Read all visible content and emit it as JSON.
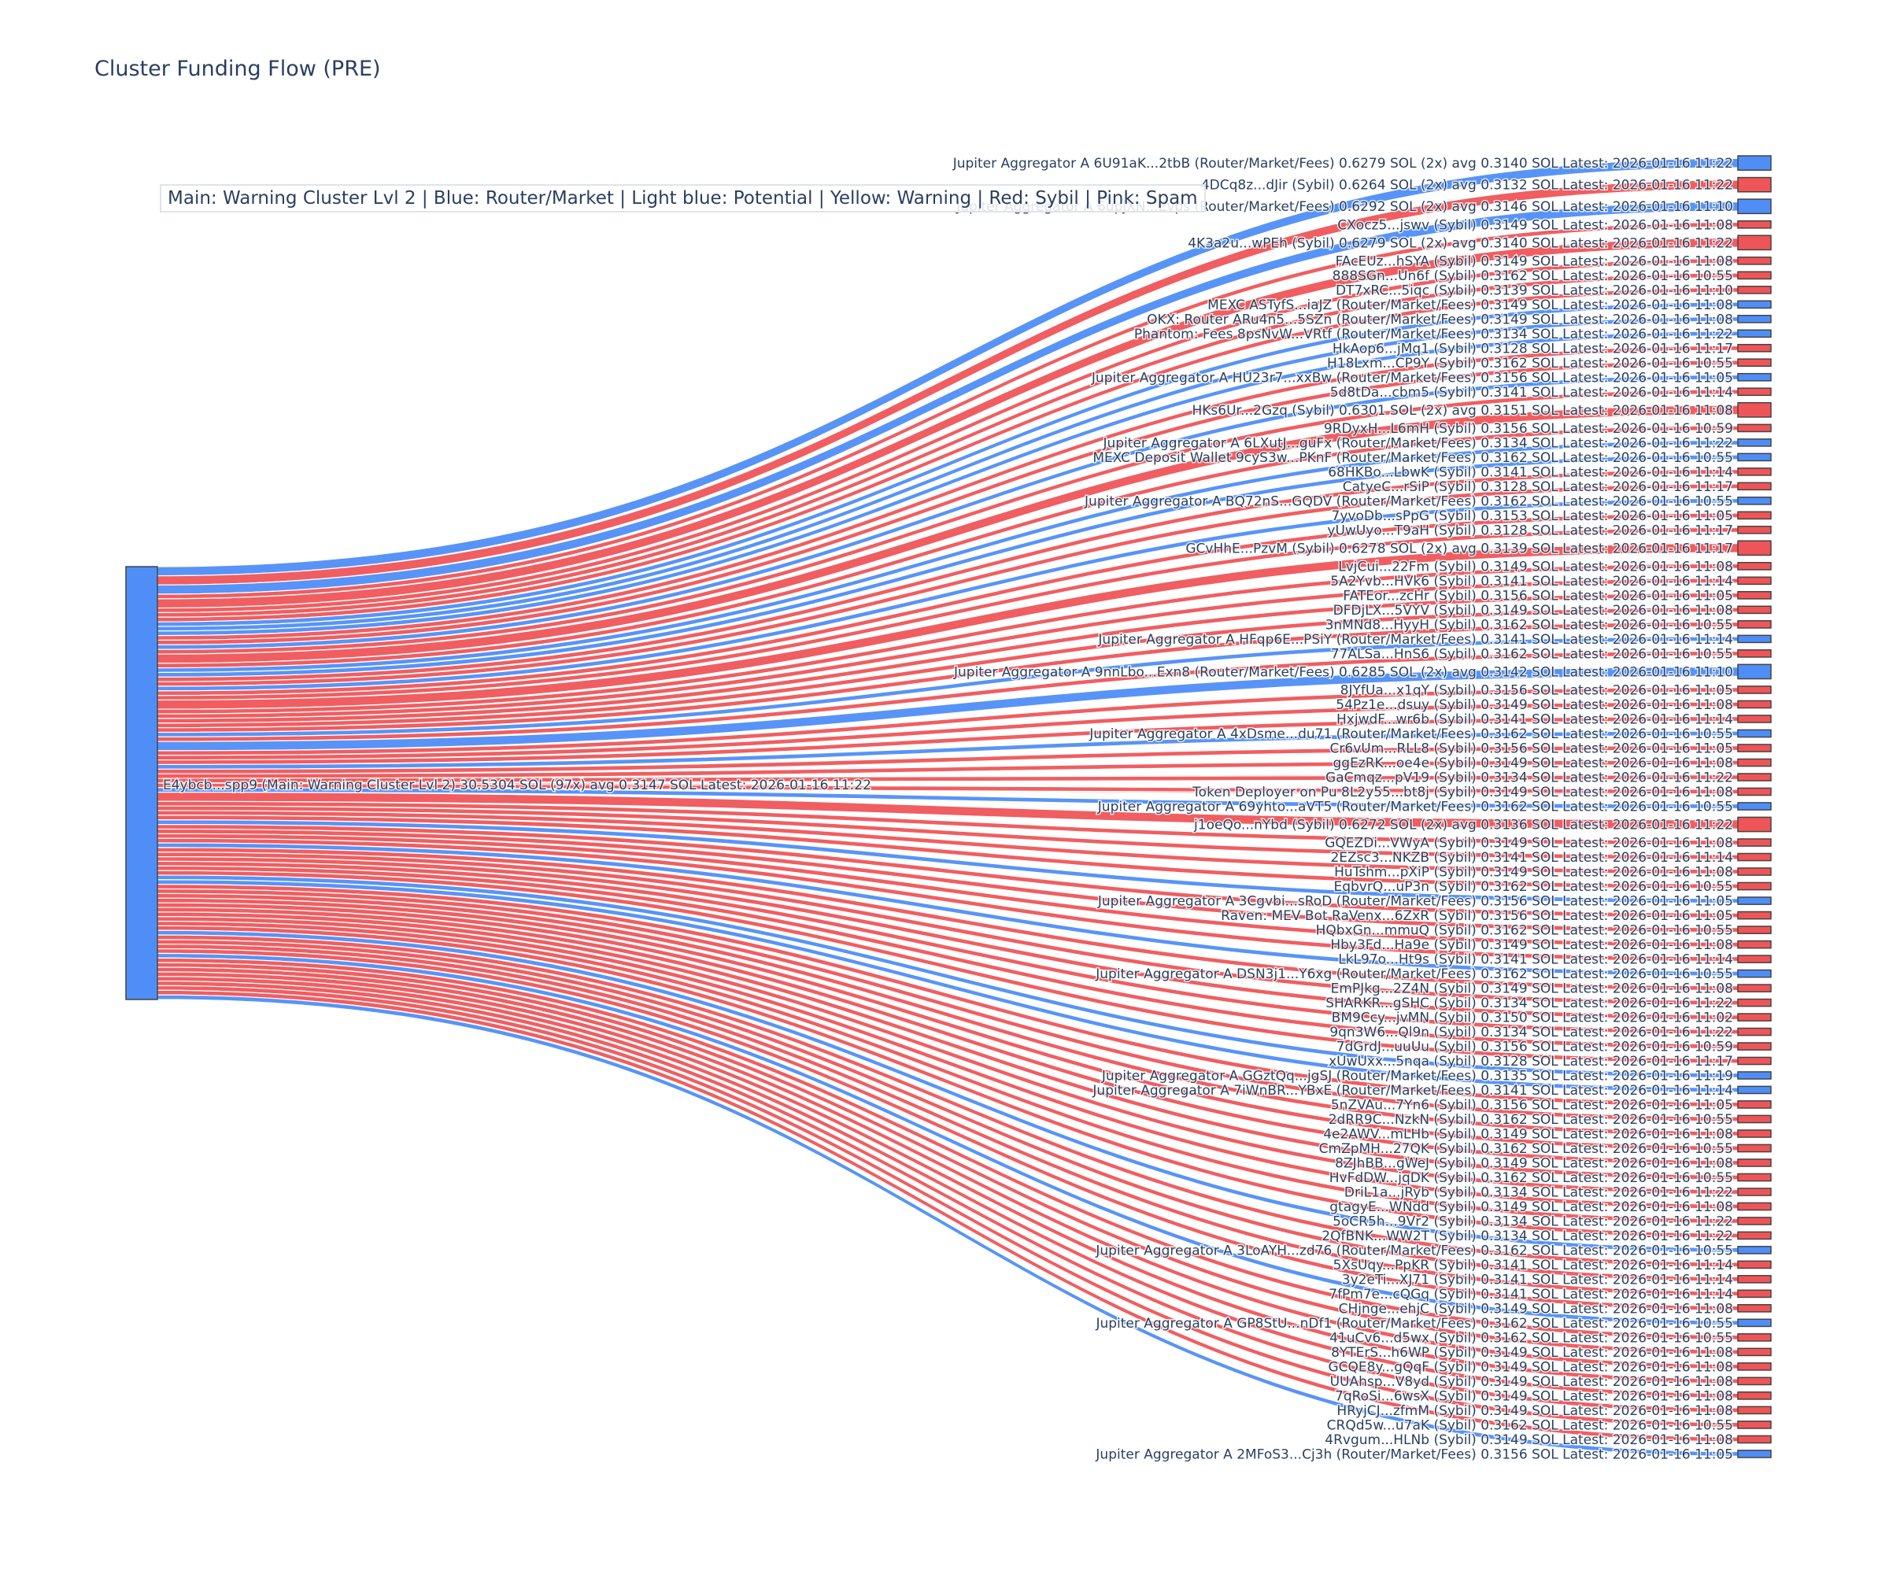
{
  "title": "Cluster Funding Flow (PRE)",
  "legend": "Main: Warning Cluster Lvl 2  |  Blue: Router/Market | Light blue: Potential | Yellow: Warning | Red: Sybil | Pink: Spam",
  "colors": {
    "router": "#4f8ef7",
    "sybil": "#ef5558",
    "main": "#4f8ef7",
    "text": "#2a3f5f"
  },
  "source": {
    "label": "E4ybcb...spp9 (Main: Warning Cluster Lvl 2) 30.5304 SOL (97x) avg 0.3147 SOL Latest: 2026-01-16 11:22",
    "type": "main",
    "value": 30.5304
  },
  "targets": [
    {
      "label": "Jupiter Aggregator A 6U91aK...2tbB (Router/Market/Fees) 0.6279 SOL (2x) avg 0.3140 SOL Latest: 2026-01-16 11:22",
      "type": "router",
      "value": 0.6279
    },
    {
      "label": "4DCq8z...dJir (Sybil) 0.6264 SOL (2x) avg 0.3132 SOL Latest: 2026-01-16 11:22",
      "type": "sybil",
      "value": 0.6264
    },
    {
      "label": "Jupiter Aggregator A 6upjXN...Evps (Router/Market/Fees) 0.6292 SOL (2x) avg 0.3146 SOL Latest: 2026-01-16 11:10",
      "type": "router",
      "value": 0.6292
    },
    {
      "label": "CXocz5...jswv (Sybil) 0.3149 SOL Latest: 2026-01-16 11:08",
      "type": "sybil",
      "value": 0.3149
    },
    {
      "label": "4K3a2u...wPEh (Sybil) 0.6279 SOL (2x) avg 0.3140 SOL Latest: 2026-01-16 11:22",
      "type": "sybil",
      "value": 0.6279
    },
    {
      "label": "FAcEUz...hSYA (Sybil) 0.3149 SOL Latest: 2026-01-16 11:08",
      "type": "sybil",
      "value": 0.3149
    },
    {
      "label": "888SGn...Un6f (Sybil) 0.3162 SOL Latest: 2026-01-16 10:55",
      "type": "sybil",
      "value": 0.3162
    },
    {
      "label": "DT7xRC...5iqc (Sybil) 0.3139 SOL Latest: 2026-01-16 11:10",
      "type": "sybil",
      "value": 0.3139
    },
    {
      "label": "MEXC ASTyfS...iaJZ (Router/Market/Fees) 0.3149 SOL Latest: 2026-01-16 11:08",
      "type": "router",
      "value": 0.3149
    },
    {
      "label": "OKX: Router ARu4n5...5SZn (Router/Market/Fees) 0.3149 SOL Latest: 2026-01-16 11:08",
      "type": "router",
      "value": 0.3149
    },
    {
      "label": "Phantom: Fees 8psNvW...VRtf (Router/Market/Fees) 0.3134 SOL Latest: 2026-01-16 11:22",
      "type": "router",
      "value": 0.3134
    },
    {
      "label": "HkAop6...jMq1 (Sybil) 0.3128 SOL Latest: 2026-01-16 11:17",
      "type": "sybil",
      "value": 0.3128
    },
    {
      "label": "H18Lxm...CP9Y (Sybil) 0.3162 SOL Latest: 2026-01-16 10:55",
      "type": "sybil",
      "value": 0.3162
    },
    {
      "label": "Jupiter Aggregator A HU23r7...xxBw (Router/Market/Fees) 0.3156 SOL Latest: 2026-01-16 11:05",
      "type": "router",
      "value": 0.3156
    },
    {
      "label": "5d8tDa...cbm5 (Sybil) 0.3141 SOL Latest: 2026-01-16 11:14",
      "type": "sybil",
      "value": 0.3141
    },
    {
      "label": "HKs6Ur...2Gzq (Sybil) 0.6301 SOL (2x) avg 0.3151 SOL Latest: 2026-01-16 11:08",
      "type": "sybil",
      "value": 0.6301
    },
    {
      "label": "9RDyxH...L6mH (Sybil) 0.3156 SOL Latest: 2026-01-16 10:59",
      "type": "sybil",
      "value": 0.3156
    },
    {
      "label": "Jupiter Aggregator A 6LXutJ...guFx (Router/Market/Fees) 0.3134 SOL Latest: 2026-01-16 11:22",
      "type": "router",
      "value": 0.3134
    },
    {
      "label": "MEXC Deposit Wallet 9cyS3w...PKnF (Router/Market/Fees) 0.3162 SOL Latest: 2026-01-16 10:55",
      "type": "router",
      "value": 0.3162
    },
    {
      "label": "68HKBo...LbwK (Sybil) 0.3141 SOL Latest: 2026-01-16 11:14",
      "type": "sybil",
      "value": 0.3141
    },
    {
      "label": "CatyeC...rSiP (Sybil) 0.3128 SOL Latest: 2026-01-16 11:17",
      "type": "sybil",
      "value": 0.3128
    },
    {
      "label": "Jupiter Aggregator A BQ72nS...GQDV (Router/Market/Fees) 0.3162 SOL Latest: 2026-01-16 10:55",
      "type": "router",
      "value": 0.3162
    },
    {
      "label": "7yvoDb...sPpG (Sybil) 0.3153 SOL Latest: 2026-01-16 11:05",
      "type": "sybil",
      "value": 0.3153
    },
    {
      "label": "yUwUyo...T9aH (Sybil) 0.3128 SOL Latest: 2026-01-16 11:17",
      "type": "sybil",
      "value": 0.3128
    },
    {
      "label": "GCvHhE...PzvM (Sybil) 0.6278 SOL (2x) avg 0.3139 SOL Latest: 2026-01-16 11:17",
      "type": "sybil",
      "value": 0.6278
    },
    {
      "label": "LvjCui...22Fm (Sybil) 0.3149 SOL Latest: 2026-01-16 11:08",
      "type": "sybil",
      "value": 0.3149
    },
    {
      "label": "5A2Yvb...HVk6 (Sybil) 0.3141 SOL Latest: 2026-01-16 11:14",
      "type": "sybil",
      "value": 0.3141
    },
    {
      "label": "FATEor...zcHr (Sybil) 0.3156 SOL Latest: 2026-01-16 11:05",
      "type": "sybil",
      "value": 0.3156
    },
    {
      "label": "DFDjLX...5VYV (Sybil) 0.3149 SOL Latest: 2026-01-16 11:08",
      "type": "sybil",
      "value": 0.3149
    },
    {
      "label": "3nMNd8...HyyH (Sybil) 0.3162 SOL Latest: 2026-01-16 10:55",
      "type": "sybil",
      "value": 0.3162
    },
    {
      "label": "Jupiter Aggregator A HFqp6E...PSiY (Router/Market/Fees) 0.3141 SOL Latest: 2026-01-16 11:14",
      "type": "router",
      "value": 0.3141
    },
    {
      "label": "77ALSa...HnS6 (Sybil) 0.3162 SOL Latest: 2026-01-16 10:55",
      "type": "sybil",
      "value": 0.3162
    },
    {
      "label": "Jupiter Aggregator A 9nnLbo...Exn8 (Router/Market/Fees) 0.6285 SOL (2x) avg 0.3142 SOL Latest: 2026-01-16 11:10",
      "type": "router",
      "value": 0.6285
    },
    {
      "label": "8JYfUa...x1qY (Sybil) 0.3156 SOL Latest: 2026-01-16 11:05",
      "type": "sybil",
      "value": 0.3156
    },
    {
      "label": "54Pz1e...dsuy (Sybil) 0.3149 SOL Latest: 2026-01-16 11:08",
      "type": "sybil",
      "value": 0.3149
    },
    {
      "label": "HxjwdF...wr6b (Sybil) 0.3141 SOL Latest: 2026-01-16 11:14",
      "type": "sybil",
      "value": 0.3141
    },
    {
      "label": "Jupiter Aggregator A 4xDsme...du71 (Router/Market/Fees) 0.3162 SOL Latest: 2026-01-16 10:55",
      "type": "router",
      "value": 0.3162
    },
    {
      "label": "Cr6vUm...RLL8 (Sybil) 0.3156 SOL Latest: 2026-01-16 11:05",
      "type": "sybil",
      "value": 0.3156
    },
    {
      "label": "ggEzRK...oe4e (Sybil) 0.3149 SOL Latest: 2026-01-16 11:08",
      "type": "sybil",
      "value": 0.3149
    },
    {
      "label": "GaCmqz...pV19 (Sybil) 0.3134 SOL Latest: 2026-01-16 11:22",
      "type": "sybil",
      "value": 0.3134
    },
    {
      "label": "Token Deployer on Pu 8L2y55...bt8j (Sybil) 0.3149 SOL Latest: 2026-01-16 11:08",
      "type": "sybil",
      "value": 0.3149
    },
    {
      "label": "Jupiter Aggregator A 69yhto...aVT5 (Router/Market/Fees) 0.3162 SOL Latest: 2026-01-16 10:55",
      "type": "router",
      "value": 0.3162
    },
    {
      "label": "j1oeQo...nYbd (Sybil) 0.6272 SOL (2x) avg 0.3136 SOL Latest: 2026-01-16 11:22",
      "type": "sybil",
      "value": 0.6272
    },
    {
      "label": "GQEZDi...VWyA (Sybil) 0.3149 SOL Latest: 2026-01-16 11:08",
      "type": "sybil",
      "value": 0.3149
    },
    {
      "label": "2EZsc3...NKZB (Sybil) 0.3141 SOL Latest: 2026-01-16 11:14",
      "type": "sybil",
      "value": 0.3141
    },
    {
      "label": "HuTshm...pXiP (Sybil) 0.3149 SOL Latest: 2026-01-16 11:08",
      "type": "sybil",
      "value": 0.3149
    },
    {
      "label": "EqbvrQ...uP3n (Sybil) 0.3162 SOL Latest: 2026-01-16 10:55",
      "type": "sybil",
      "value": 0.3162
    },
    {
      "label": "Jupiter Aggregator A 3Cgvbi...sRoD (Router/Market/Fees) 0.3156 SOL Latest: 2026-01-16 11:05",
      "type": "router",
      "value": 0.3156
    },
    {
      "label": "Raven: MEV Bot RaVenx...6ZxR (Sybil) 0.3156 SOL Latest: 2026-01-16 11:05",
      "type": "sybil",
      "value": 0.3156
    },
    {
      "label": "HQbxGn...mmuQ (Sybil) 0.3162 SOL Latest: 2026-01-16 10:55",
      "type": "sybil",
      "value": 0.3162
    },
    {
      "label": "Hby3Fd...Ha9e (Sybil) 0.3149 SOL Latest: 2026-01-16 11:08",
      "type": "sybil",
      "value": 0.3149
    },
    {
      "label": "LkL97o...Ht9s (Sybil) 0.3141 SOL Latest: 2026-01-16 11:14",
      "type": "sybil",
      "value": 0.3141
    },
    {
      "label": "Jupiter Aggregator A DSN3j1...Y6xg (Router/Market/Fees) 0.3162 SOL Latest: 2026-01-16 10:55",
      "type": "router",
      "value": 0.3162
    },
    {
      "label": "EmPJkg...2Z4N (Sybil) 0.3149 SOL Latest: 2026-01-16 11:08",
      "type": "sybil",
      "value": 0.3149
    },
    {
      "label": "SHARKR...gSHC (Sybil) 0.3134 SOL Latest: 2026-01-16 11:22",
      "type": "sybil",
      "value": 0.3134
    },
    {
      "label": "BM9Ccy...jvMN (Sybil) 0.3150 SOL Latest: 2026-01-16 11:02",
      "type": "sybil",
      "value": 0.315
    },
    {
      "label": "9qn3W6...Ql9n (Sybil) 0.3134 SOL Latest: 2026-01-16 11:22",
      "type": "sybil",
      "value": 0.3134
    },
    {
      "label": "7dGrdJ...uuUu (Sybil) 0.3156 SOL Latest: 2026-01-16 10:59",
      "type": "sybil",
      "value": 0.3156
    },
    {
      "label": "xUwUxx...5nqa (Sybil) 0.3128 SOL Latest: 2026-01-16 11:17",
      "type": "sybil",
      "value": 0.3128
    },
    {
      "label": "Jupiter Aggregator A GGztQq...jgSJ (Router/Market/Fees) 0.3135 SOL Latest: 2026-01-16 11:19",
      "type": "router",
      "value": 0.3135
    },
    {
      "label": "Jupiter Aggregator A 7iWnBR...YBxE (Router/Market/Fees) 0.3141 SOL Latest: 2026-01-16 11:14",
      "type": "router",
      "value": 0.3141
    },
    {
      "label": "5nZVAu...7Yn6 (Sybil) 0.3156 SOL Latest: 2026-01-16 11:05",
      "type": "sybil",
      "value": 0.3156
    },
    {
      "label": "2dRR9C...NzkN (Sybil) 0.3162 SOL Latest: 2026-01-16 10:55",
      "type": "sybil",
      "value": 0.3162
    },
    {
      "label": "4e2AWV...mLHb (Sybil) 0.3149 SOL Latest: 2026-01-16 11:08",
      "type": "sybil",
      "value": 0.3149
    },
    {
      "label": "CmZpMH...27QK (Sybil) 0.3162 SOL Latest: 2026-01-16 10:55",
      "type": "sybil",
      "value": 0.3162
    },
    {
      "label": "8ZJhBB...gWeJ (Sybil) 0.3149 SOL Latest: 2026-01-16 11:08",
      "type": "sybil",
      "value": 0.3149
    },
    {
      "label": "HvFdDW...jqDK (Sybil) 0.3162 SOL Latest: 2026-01-16 10:55",
      "type": "sybil",
      "value": 0.3162
    },
    {
      "label": "DriL1a...jRyb (Sybil) 0.3134 SOL Latest: 2026-01-16 11:22",
      "type": "sybil",
      "value": 0.3134
    },
    {
      "label": "gtagyE...WNdd (Sybil) 0.3149 SOL Latest: 2026-01-16 11:08",
      "type": "sybil",
      "value": 0.3149
    },
    {
      "label": "5oCR5h...9Vr2 (Sybil) 0.3134 SOL Latest: 2026-01-16 11:22",
      "type": "sybil",
      "value": 0.3134
    },
    {
      "label": "2QfBNK...WW2T (Sybil) 0.3134 SOL Latest: 2026-01-16 11:22",
      "type": "sybil",
      "value": 0.3134
    },
    {
      "label": "Jupiter Aggregator A 3LoAYH...zd76 (Router/Market/Fees) 0.3162 SOL Latest: 2026-01-16 10:55",
      "type": "router",
      "value": 0.3162
    },
    {
      "label": "5XsUqy...PpKR (Sybil) 0.3141 SOL Latest: 2026-01-16 11:14",
      "type": "sybil",
      "value": 0.3141
    },
    {
      "label": "3y2eTi...XJ71 (Sybil) 0.3141 SOL Latest: 2026-01-16 11:14",
      "type": "sybil",
      "value": 0.3141
    },
    {
      "label": "7fPm7e...cQGq (Sybil) 0.3141 SOL Latest: 2026-01-16 11:14",
      "type": "sybil",
      "value": 0.3141
    },
    {
      "label": "CHjnge...ehjC (Sybil) 0.3149 SOL Latest: 2026-01-16 11:08",
      "type": "sybil",
      "value": 0.3149
    },
    {
      "label": "Jupiter Aggregator A GP8StU...nDf1 (Router/Market/Fees) 0.3162 SOL Latest: 2026-01-16 10:55",
      "type": "router",
      "value": 0.3162
    },
    {
      "label": "41uCv6...d5wx (Sybil) 0.3162 SOL Latest: 2026-01-16 10:55",
      "type": "sybil",
      "value": 0.3162
    },
    {
      "label": "8YTErS...h6WP (Sybil) 0.3149 SOL Latest: 2026-01-16 11:08",
      "type": "sybil",
      "value": 0.3149
    },
    {
      "label": "GCQE8y...gQqF (Sybil) 0.3149 SOL Latest: 2026-01-16 11:08",
      "type": "sybil",
      "value": 0.3149
    },
    {
      "label": "UUAhsp...V8yd (Sybil) 0.3149 SOL Latest: 2026-01-16 11:08",
      "type": "sybil",
      "value": 0.3149
    },
    {
      "label": "7qRoSi...6wsX (Sybil) 0.3149 SOL Latest: 2026-01-16 11:08",
      "type": "sybil",
      "value": 0.3149
    },
    {
      "label": "HRyjCJ...zfmM (Sybil) 0.3149 SOL Latest: 2026-01-16 11:08",
      "type": "sybil",
      "value": 0.3149
    },
    {
      "label": "CRQd5w...u7aK (Sybil) 0.3162 SOL Latest: 2026-01-16 10:55",
      "type": "sybil",
      "value": 0.3162
    },
    {
      "label": "4Rvgum...HLNb (Sybil) 0.3149 SOL Latest: 2026-01-16 11:08",
      "type": "sybil",
      "value": 0.3149
    },
    {
      "label": "Jupiter Aggregator A 2MFoS3...Cj3h (Router/Market/Fees) 0.3156 SOL Latest: 2026-01-16 11:05",
      "type": "router",
      "value": 0.3156
    }
  ]
}
